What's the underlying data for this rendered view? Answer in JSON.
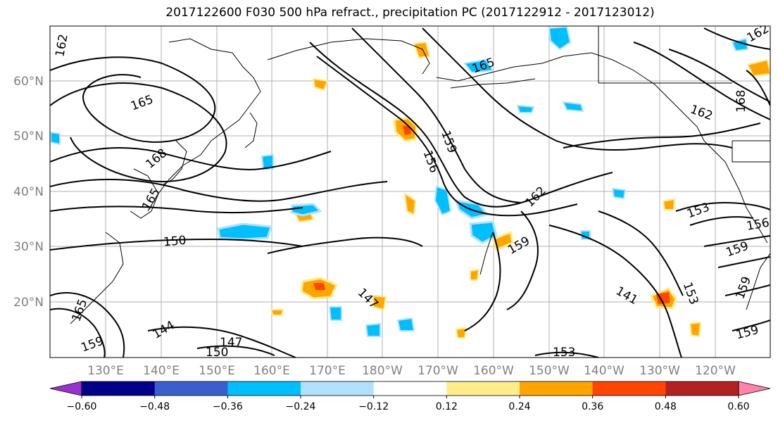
{
  "title": "2017122600 F030 500 hPa refract., precipitation PC (2017122912 - 2017123012)",
  "map": {
    "lat_labels": [
      "60°N",
      "50°N",
      "40°N",
      "30°N",
      "20°N"
    ],
    "lon_labels": [
      "130°E",
      "140°E",
      "150°E",
      "160°E",
      "170°E",
      "180°W",
      "170°W",
      "160°W",
      "150°W",
      "140°W",
      "130°W",
      "120°W"
    ],
    "contour_labels": [
      "162",
      "165",
      "165",
      "168",
      "165",
      "162",
      "159",
      "156",
      "162",
      "159",
      "153",
      "156",
      "159",
      "150",
      "147",
      "144",
      "150",
      "147",
      "153",
      "141",
      "153",
      "159",
      "159",
      "162",
      "168",
      "165",
      "159"
    ]
  },
  "colorbar": {
    "tick_labels": [
      "−0.60",
      "−0.48",
      "−0.36",
      "−0.24",
      "−0.12",
      "0.12",
      "0.24",
      "0.36",
      "0.48",
      "0.60"
    ],
    "colors": [
      "#9932cc",
      "#00008b",
      "#3a5fcd",
      "#00bfff",
      "#b0e2ff",
      "#ffffff",
      "#ffec8b",
      "#ffa500",
      "#ff4500",
      "#b22222",
      "#ff82ab"
    ]
  }
}
